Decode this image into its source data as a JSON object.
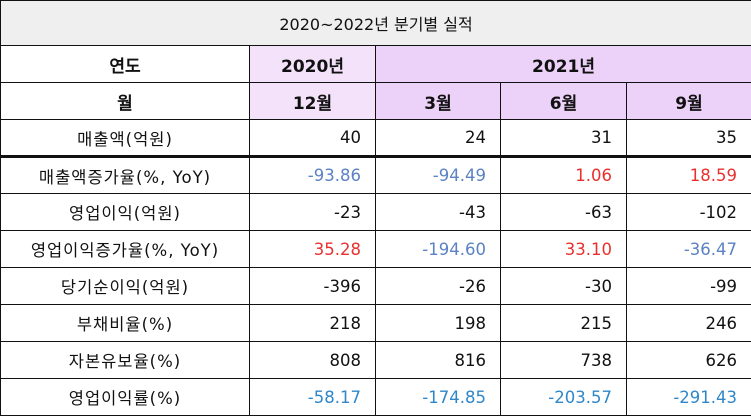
{
  "title": "2020~2022년 분기별 실적",
  "header": {
    "year_label": "연도",
    "month_label": "월",
    "years": [
      "2020년",
      "2021년"
    ],
    "months": [
      "12월",
      "3월",
      "6월",
      "9월"
    ]
  },
  "rows": [
    {
      "label": "매출액(억원)",
      "values": [
        "40",
        "24",
        "31",
        "35"
      ]
    },
    {
      "label": "매출액증가율(%, YoY)",
      "values": [
        "-93.86",
        "-94.49",
        "1.06",
        "18.59"
      ]
    },
    {
      "label": "영업이익(억원)",
      "values": [
        "-23",
        "-43",
        "-63",
        "-102"
      ]
    },
    {
      "label": "영업이익증가율(%, YoY)",
      "values": [
        "35.28",
        "-194.60",
        "33.10",
        "-36.47"
      ]
    },
    {
      "label": "당기순이익(억원)",
      "values": [
        "-396",
        "-26",
        "-30",
        "-99"
      ]
    },
    {
      "label": "부채비율(%)",
      "values": [
        "218",
        "198",
        "215",
        "246"
      ]
    },
    {
      "label": "자본유보율(%)",
      "values": [
        "808",
        "816",
        "738",
        "626"
      ]
    },
    {
      "label": "영업이익률(%)",
      "values": [
        "-58.17",
        "-174.85",
        "-203.57",
        "-291.43"
      ]
    }
  ],
  "colors": {
    "negative": "#5b82c2",
    "positive": "#e8312f",
    "margin_blue": "#2f87c9",
    "header_2020": "#f4e2fb",
    "header_2021": "#ecd2f9"
  }
}
